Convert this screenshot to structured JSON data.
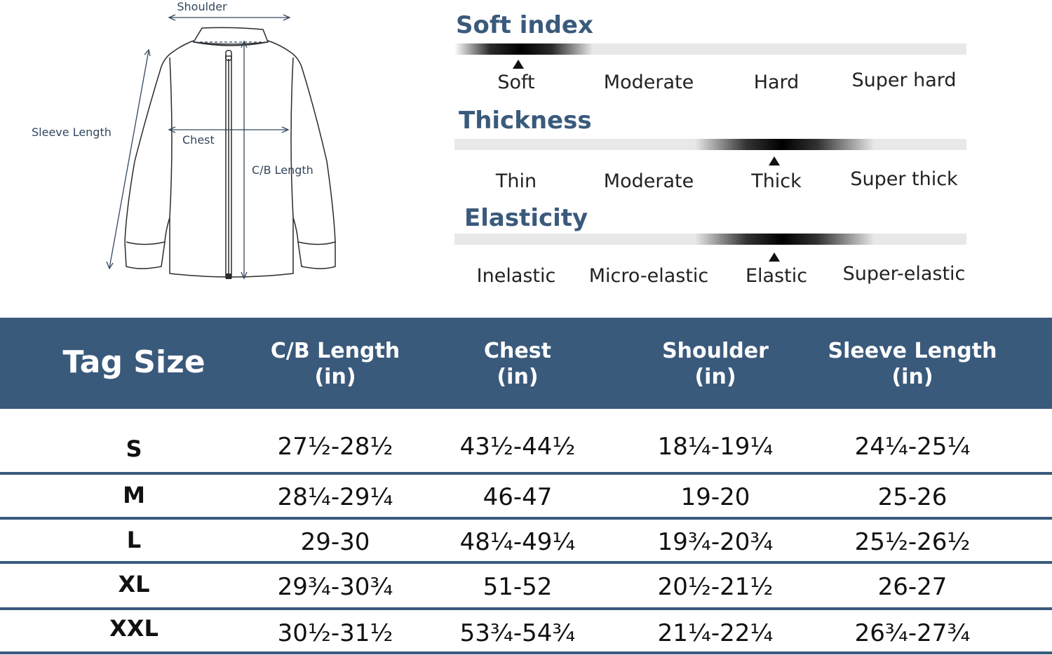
{
  "diagram": {
    "labels": {
      "shoulder": "Shoulder",
      "sleeve_length": "Sleeve Length",
      "chest": "Chest",
      "cb_length": "C/B Length"
    }
  },
  "scales": [
    {
      "title": "Soft index",
      "labels": [
        "Soft",
        "Moderate",
        "Hard",
        "Super hard"
      ],
      "selected": "Soft"
    },
    {
      "title": "Thickness",
      "labels": [
        "Thin",
        "Moderate",
        "Thick",
        "Super thick"
      ],
      "selected": "Thick"
    },
    {
      "title": "Elasticity",
      "labels": [
        "Inelastic",
        "Micro-elastic",
        "Elastic",
        "Super-elastic"
      ],
      "selected": "Elastic"
    }
  ],
  "size_table": {
    "headers": [
      {
        "line1": "Tag Size",
        "line2": ""
      },
      {
        "line1": "C/B Length",
        "line2": "(in)"
      },
      {
        "line1": "Chest",
        "line2": "(in)"
      },
      {
        "line1": "Shoulder",
        "line2": "(in)"
      },
      {
        "line1": "Sleeve Length",
        "line2": "(in)"
      }
    ],
    "rows": [
      {
        "size": "S",
        "cb_length": "27½-28½",
        "chest": "43½-44½",
        "shoulder": "18¼-19¼",
        "sleeve_length": "24¼-25¼"
      },
      {
        "size": "M",
        "cb_length": "28¼-29¼",
        "chest": "46-47",
        "shoulder": "19-20",
        "sleeve_length": "25-26"
      },
      {
        "size": "L",
        "cb_length": "29-30",
        "chest": "48¼-49¼",
        "shoulder": "19¾-20¾",
        "sleeve_length": "25½-26½"
      },
      {
        "size": "XL",
        "cb_length": "29¾-30¾",
        "chest": "51-52",
        "shoulder": "20½-21½",
        "sleeve_length": "26-27"
      },
      {
        "size": "XXL",
        "cb_length": "30½-31½",
        "chest": "53¾-54¾",
        "shoulder": "21¼-22¼",
        "sleeve_length": "26¾-27¾"
      }
    ]
  },
  "colors": {
    "accent": "#3a5a7c",
    "text": "#111111",
    "bar_track": "#e8e8e8"
  }
}
